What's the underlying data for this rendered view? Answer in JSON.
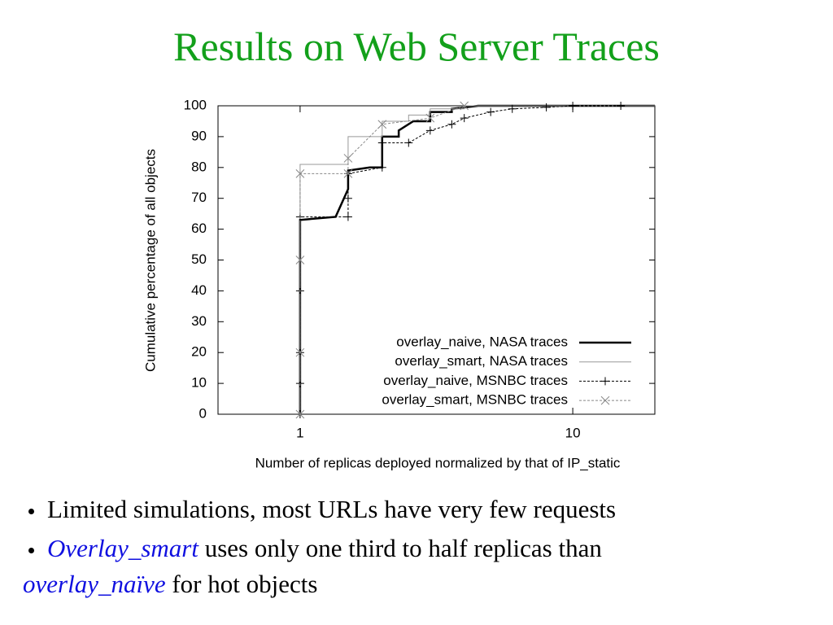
{
  "title": "Results on Web Server Traces",
  "chart_data": {
    "type": "line",
    "x_label": "Number of replicas deployed normalized by that of IP_static",
    "y_label": "Cumulative percentage of all objects",
    "xlim": [
      0.5,
      20
    ],
    "xticks": [
      1,
      10
    ],
    "x_log": true,
    "ylim": [
      0,
      100
    ],
    "yticks": [
      0,
      10,
      20,
      30,
      40,
      50,
      60,
      70,
      80,
      90,
      100
    ],
    "legend": "bottom-right",
    "series": [
      {
        "name": "overlay_naive, NASA traces",
        "color": "#000000",
        "width": 2.5,
        "dash": "none",
        "marker": "none",
        "x": [
          1,
          1,
          1.35,
          1.5,
          1.5,
          1.8,
          2,
          2,
          2.3,
          2.3,
          2.6,
          3,
          3,
          3.6,
          3.6,
          4.5,
          20
        ],
        "y": [
          0,
          63,
          64,
          73,
          79,
          80,
          80,
          90,
          90,
          92,
          95,
          95,
          98,
          98,
          99,
          100,
          100
        ]
      },
      {
        "name": "overlay_smart, NASA traces",
        "color": "#999999",
        "width": 1,
        "dash": "none",
        "marker": "none",
        "x": [
          1,
          1,
          1.5,
          1.5,
          2,
          2,
          2.5,
          2.5,
          3,
          3,
          4,
          4,
          20
        ],
        "y": [
          0,
          81,
          81,
          90,
          90,
          95,
          95,
          97,
          97,
          99,
          99,
          100,
          100
        ]
      },
      {
        "name": "overlay_naive, MSNBC traces",
        "color": "#000000",
        "width": 1,
        "dash": "3,2",
        "marker": "plus",
        "x": [
          1,
          1,
          1,
          1,
          1,
          1.5,
          1.5,
          1.5,
          2,
          2,
          2.5,
          3,
          3.6,
          4,
          5,
          6,
          8,
          10,
          15
        ],
        "y": [
          0,
          10,
          20,
          40,
          64,
          64,
          70,
          78,
          80,
          88,
          88,
          92,
          94,
          96,
          98,
          99,
          99.5,
          100,
          100
        ]
      },
      {
        "name": "overlay_smart, MSNBC traces",
        "color": "#888888",
        "width": 1,
        "dash": "3,2",
        "marker": "cross",
        "x": [
          1,
          1,
          1,
          1,
          1.5,
          1.5,
          2,
          3,
          4
        ],
        "y": [
          0,
          20,
          50,
          78,
          78,
          83,
          94,
          96,
          100
        ]
      }
    ]
  },
  "bullets": [
    [
      "Limited simulations, most URLs have very few requests"
    ],
    [
      "Overlay_smart",
      "uses only one third to half replicas than",
      "overlay_naïve",
      "for hot objects"
    ]
  ]
}
